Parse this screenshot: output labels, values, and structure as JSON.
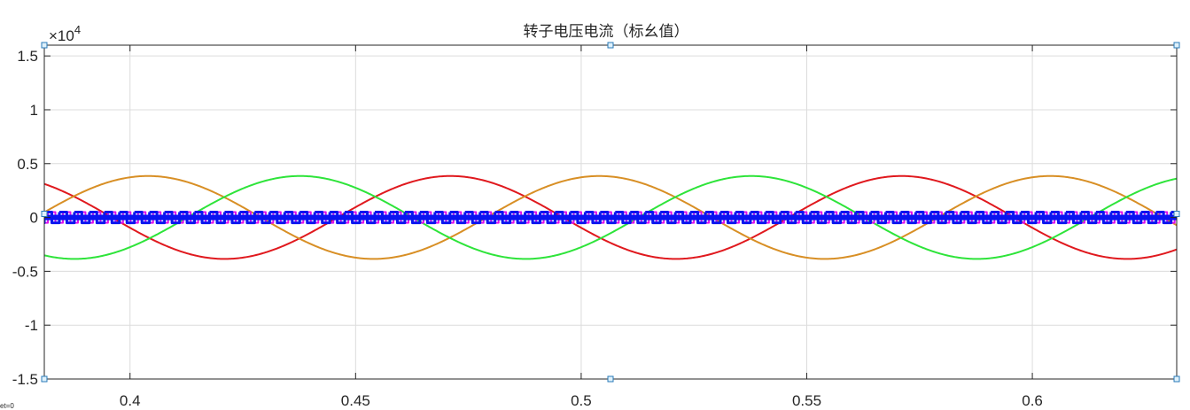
{
  "chart_data": {
    "type": "line",
    "title": "转子电压电流（标幺值）",
    "xlabel": "",
    "ylabel": "",
    "y_exponent_base": "×10",
    "y_exponent_power": "4",
    "offset_label": "et=0",
    "xlim": [
      0.381,
      0.632
    ],
    "ylim": [
      -1.5,
      1.6
    ],
    "y_scale_factor": 10000,
    "grid": true,
    "x_ticks": [
      {
        "value": 0.4,
        "label": "0.4"
      },
      {
        "value": 0.45,
        "label": "0.45"
      },
      {
        "value": 0.5,
        "label": "0.5"
      },
      {
        "value": 0.55,
        "label": "0.55"
      },
      {
        "value": 0.6,
        "label": "0.6"
      }
    ],
    "y_ticks": [
      {
        "value": 1.5,
        "label": "1.5"
      },
      {
        "value": 1.0,
        "label": "1"
      },
      {
        "value": 0.5,
        "label": "0.5"
      },
      {
        "value": 0.0,
        "label": "0"
      },
      {
        "value": -0.5,
        "label": "-0.5"
      },
      {
        "value": -1.0,
        "label": "-1"
      },
      {
        "value": -1.5,
        "label": "-1.5"
      }
    ],
    "series": [
      {
        "kind": "sine",
        "color": "#e0191e",
        "amplitude": 0.385,
        "period": 0.1,
        "peak_x": 0.471,
        "line_width": 2
      },
      {
        "kind": "sine",
        "color": "#d88f25",
        "amplitude": 0.385,
        "period": 0.1,
        "peak_x": 0.404,
        "line_width": 2
      },
      {
        "kind": "sine",
        "color": "#2ee43a",
        "amplitude": 0.385,
        "period": 0.1,
        "peak_x": 0.4377,
        "line_width": 2
      },
      {
        "kind": "pwm",
        "color": "#e010ea",
        "level": 0.05,
        "half_width": 0.02,
        "period": 0.00333,
        "x_offset": 0.0008,
        "line_width": 2
      },
      {
        "kind": "pwm",
        "color": "#0a14f0",
        "level": 0.05,
        "half_width": 0.025,
        "period": 0.00333,
        "x_offset": 0.0,
        "line_width": 3
      }
    ]
  }
}
